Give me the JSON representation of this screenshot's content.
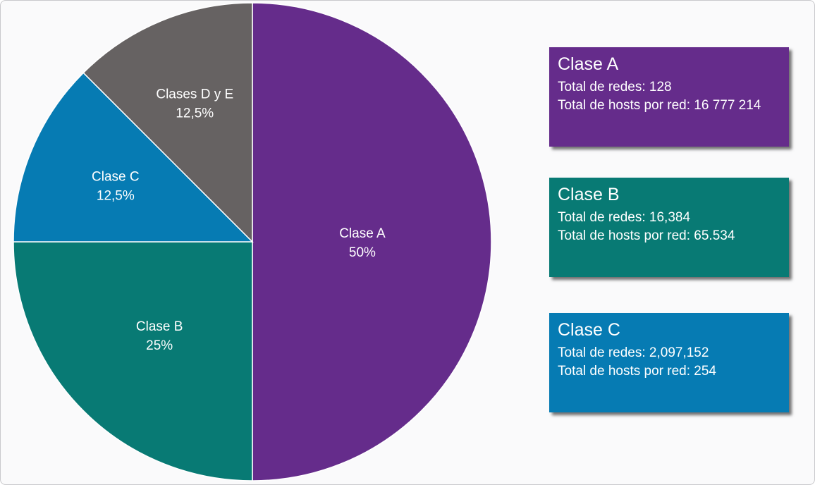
{
  "chart_data": {
    "type": "pie",
    "slices": [
      {
        "label": "Clase A",
        "pct_label": "50%",
        "value": 50,
        "color": "#652c8b"
      },
      {
        "label": "Clase B",
        "pct_label": "25%",
        "value": 25,
        "color": "#087a74"
      },
      {
        "label": "Clase C",
        "pct_label": "12,5%",
        "value": 12.5,
        "color": "#067bb3"
      },
      {
        "label": "Clases D y E",
        "pct_label": "12,5%",
        "value": 12.5,
        "color": "#666262"
      }
    ],
    "start_angle": "top",
    "direction": "clockwise"
  },
  "cards": [
    {
      "title": "Clase A",
      "line1": "Total de redes: 128",
      "line2": "Total de hosts por red: 16 777 214",
      "color": "#652c8b"
    },
    {
      "title": "Clase B",
      "line1": "Total de redes: 16,384",
      "line2": "Total de hosts por red: 65.534",
      "color": "#087a74"
    },
    {
      "title": "Clase C",
      "line1": "Total de redes: 2,097,152",
      "line2": "Total de hosts por red: 254",
      "color": "#067bb3"
    }
  ]
}
